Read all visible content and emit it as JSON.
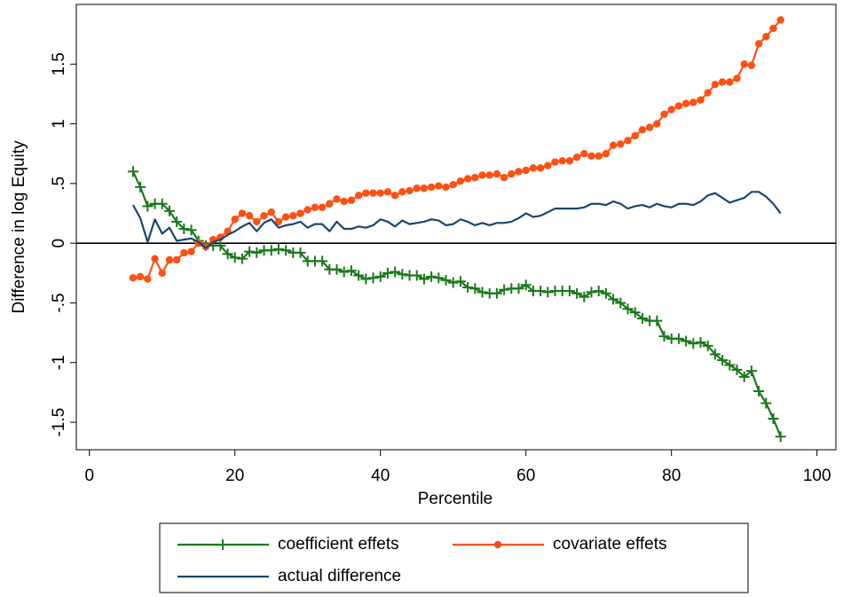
{
  "chart_data": {
    "type": "line",
    "x_label": "Percentile",
    "y_label": "Difference in log Equity",
    "x": [
      6,
      7,
      8,
      9,
      10,
      11,
      12,
      13,
      14,
      15,
      16,
      17,
      18,
      19,
      20,
      21,
      22,
      23,
      24,
      25,
      26,
      27,
      28,
      29,
      30,
      31,
      32,
      33,
      34,
      35,
      36,
      37,
      38,
      39,
      40,
      41,
      42,
      43,
      44,
      45,
      46,
      47,
      48,
      49,
      50,
      51,
      52,
      53,
      54,
      55,
      56,
      57,
      58,
      59,
      60,
      61,
      62,
      63,
      64,
      65,
      66,
      67,
      68,
      69,
      70,
      71,
      72,
      73,
      74,
      75,
      76,
      77,
      78,
      79,
      80,
      81,
      82,
      83,
      84,
      85,
      86,
      87,
      88,
      89,
      90,
      91,
      92,
      93,
      94,
      95
    ],
    "series": [
      {
        "name": "coefficient effets",
        "color": "#1b7a1b",
        "marker": "plus",
        "values": [
          0.6,
          0.47,
          0.31,
          0.33,
          0.33,
          0.27,
          0.18,
          0.12,
          0.11,
          0.02,
          -0.02,
          -0.02,
          -0.02,
          -0.09,
          -0.12,
          -0.13,
          -0.07,
          -0.08,
          -0.06,
          -0.06,
          -0.05,
          -0.06,
          -0.08,
          -0.08,
          -0.15,
          -0.15,
          -0.15,
          -0.22,
          -0.22,
          -0.24,
          -0.23,
          -0.27,
          -0.3,
          -0.29,
          -0.28,
          -0.25,
          -0.24,
          -0.26,
          -0.27,
          -0.27,
          -0.3,
          -0.28,
          -0.29,
          -0.31,
          -0.33,
          -0.32,
          -0.37,
          -0.38,
          -0.41,
          -0.42,
          -0.42,
          -0.39,
          -0.38,
          -0.38,
          -0.35,
          -0.4,
          -0.4,
          -0.41,
          -0.4,
          -0.4,
          -0.4,
          -0.42,
          -0.45,
          -0.41,
          -0.4,
          -0.42,
          -0.47,
          -0.5,
          -0.55,
          -0.58,
          -0.63,
          -0.65,
          -0.65,
          -0.78,
          -0.8,
          -0.8,
          -0.82,
          -0.84,
          -0.83,
          -0.86,
          -0.93,
          -0.98,
          -1.02,
          -1.06,
          -1.12,
          -1.07,
          -1.24,
          -1.34,
          -1.47,
          -1.62
        ]
      },
      {
        "name": "covariate effets",
        "color": "#ff5014",
        "marker": "circle",
        "values": [
          -0.29,
          -0.28,
          -0.3,
          -0.13,
          -0.25,
          -0.14,
          -0.14,
          -0.08,
          -0.07,
          0.0,
          -0.03,
          0.03,
          0.05,
          0.1,
          0.2,
          0.25,
          0.23,
          0.18,
          0.23,
          0.26,
          0.18,
          0.22,
          0.23,
          0.25,
          0.28,
          0.3,
          0.3,
          0.33,
          0.37,
          0.35,
          0.36,
          0.4,
          0.42,
          0.42,
          0.42,
          0.43,
          0.4,
          0.43,
          0.44,
          0.46,
          0.46,
          0.47,
          0.48,
          0.47,
          0.49,
          0.52,
          0.54,
          0.55,
          0.57,
          0.57,
          0.58,
          0.55,
          0.58,
          0.6,
          0.61,
          0.63,
          0.63,
          0.65,
          0.68,
          0.69,
          0.69,
          0.72,
          0.75,
          0.73,
          0.73,
          0.75,
          0.82,
          0.83,
          0.86,
          0.9,
          0.95,
          0.97,
          1.0,
          1.08,
          1.12,
          1.15,
          1.17,
          1.18,
          1.2,
          1.26,
          1.33,
          1.35,
          1.35,
          1.38,
          1.5,
          1.49,
          1.67,
          1.73,
          1.8,
          1.87
        ]
      },
      {
        "name": "actual difference",
        "color": "#1a476f",
        "marker": "none",
        "values": [
          0.32,
          0.21,
          0.01,
          0.2,
          0.08,
          0.13,
          0.02,
          0.03,
          0.04,
          0.01,
          -0.04,
          0.01,
          0.03,
          0.07,
          0.1,
          0.14,
          0.17,
          0.1,
          0.17,
          0.2,
          0.13,
          0.15,
          0.16,
          0.18,
          0.13,
          0.16,
          0.16,
          0.1,
          0.18,
          0.12,
          0.12,
          0.14,
          0.13,
          0.15,
          0.2,
          0.18,
          0.14,
          0.19,
          0.16,
          0.17,
          0.18,
          0.2,
          0.19,
          0.15,
          0.16,
          0.2,
          0.18,
          0.15,
          0.17,
          0.15,
          0.17,
          0.17,
          0.18,
          0.21,
          0.25,
          0.22,
          0.23,
          0.26,
          0.29,
          0.29,
          0.29,
          0.29,
          0.3,
          0.33,
          0.33,
          0.32,
          0.35,
          0.33,
          0.29,
          0.31,
          0.32,
          0.3,
          0.33,
          0.31,
          0.3,
          0.33,
          0.33,
          0.32,
          0.35,
          0.4,
          0.42,
          0.38,
          0.34,
          0.36,
          0.38,
          0.43,
          0.43,
          0.39,
          0.33,
          0.25
        ]
      }
    ],
    "xlim": [
      -1.8,
      102.6
    ],
    "ylim": [
      -1.73,
      2.0
    ],
    "xticks": [
      0,
      20,
      40,
      60,
      80,
      100
    ],
    "yticks": [
      {
        "value": -1.5,
        "label": "-1.5"
      },
      -1,
      {
        "value": -0.5,
        "label": "-.5"
      },
      0,
      {
        "value": 0.5,
        "label": ".5"
      },
      1,
      1.5
    ],
    "yline": 0,
    "grid": false,
    "legend": "bottom"
  }
}
